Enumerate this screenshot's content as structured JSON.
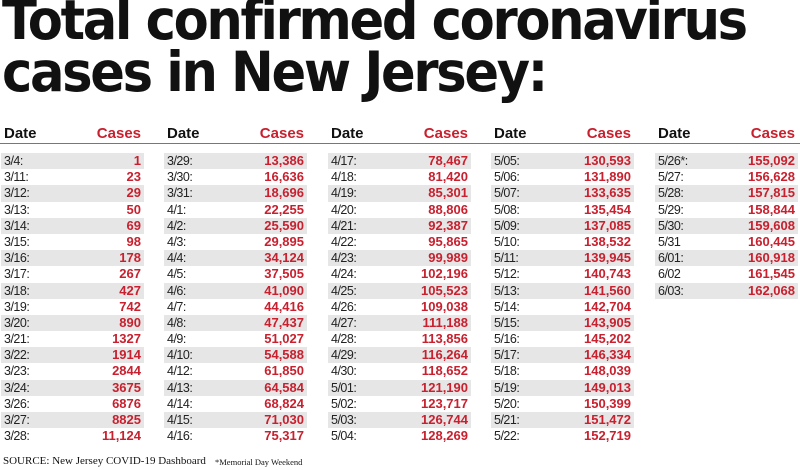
{
  "title": {
    "line1": "Total confirmed coronavirus",
    "line2": "cases in New Jersey:"
  },
  "header": {
    "date": "Date",
    "cases": "Cases"
  },
  "columns": [
    {
      "rows": [
        [
          "3/4:",
          "1"
        ],
        [
          "3/11:",
          "23"
        ],
        [
          "3/12:",
          "29"
        ],
        [
          "3/13:",
          "50"
        ],
        [
          "3/14:",
          "69"
        ],
        [
          "3/15:",
          "98"
        ],
        [
          "3/16:",
          "178"
        ],
        [
          "3/17:",
          "267"
        ],
        [
          "3/18:",
          "427"
        ],
        [
          "3/19:",
          "742"
        ],
        [
          "3/20:",
          "890"
        ],
        [
          "3/21:",
          "1327"
        ],
        [
          "3/22:",
          "1914"
        ],
        [
          "3/23:",
          "2844"
        ],
        [
          "3/24:",
          "3675"
        ],
        [
          "3/26:",
          "6876"
        ],
        [
          "3/27:",
          "8825"
        ],
        [
          "3/28:",
          "11,124"
        ]
      ]
    },
    {
      "rows": [
        [
          "3/29:",
          "13,386"
        ],
        [
          "3/30:",
          "16,636"
        ],
        [
          "3/31:",
          "18,696"
        ],
        [
          "4/1:",
          "22,255"
        ],
        [
          "4/2:",
          "25,590"
        ],
        [
          "4/3:",
          "29,895"
        ],
        [
          "4/4:",
          "34,124"
        ],
        [
          "4/5:",
          "37,505"
        ],
        [
          "4/6:",
          "41,090"
        ],
        [
          "4/7:",
          "44,416"
        ],
        [
          "4/8:",
          "47,437"
        ],
        [
          "4/9:",
          "51,027"
        ],
        [
          "4/10:",
          "54,588"
        ],
        [
          "4/12:",
          "61,850"
        ],
        [
          "4/13:",
          "64,584"
        ],
        [
          "4/14:",
          "68,824"
        ],
        [
          "4/15:",
          "71,030"
        ],
        [
          "4/16:",
          "75,317"
        ]
      ]
    },
    {
      "rows": [
        [
          "4/17:",
          "78,467"
        ],
        [
          "4/18:",
          "81,420"
        ],
        [
          "4/19:",
          "85,301"
        ],
        [
          "4/20:",
          "88,806"
        ],
        [
          "4/21:",
          "92,387"
        ],
        [
          "4/22:",
          "95,865"
        ],
        [
          "4/23:",
          "99,989"
        ],
        [
          "4/24:",
          "102,196"
        ],
        [
          "4/25:",
          "105,523"
        ],
        [
          "4/26:",
          "109,038"
        ],
        [
          "4/27:",
          "111,188"
        ],
        [
          "4/28:",
          "113,856"
        ],
        [
          "4/29:",
          "116,264"
        ],
        [
          "4/30:",
          "118,652"
        ],
        [
          "5/01:",
          "121,190"
        ],
        [
          "5/02:",
          "123,717"
        ],
        [
          "5/03:",
          "126,744"
        ],
        [
          "5/04:",
          "128,269"
        ]
      ]
    },
    {
      "rows": [
        [
          "5/05:",
          "130,593"
        ],
        [
          "5/06:",
          "131,890"
        ],
        [
          "5/07:",
          "133,635"
        ],
        [
          "5/08:",
          "135,454"
        ],
        [
          "5/09:",
          "137,085"
        ],
        [
          "5/10:",
          "138,532"
        ],
        [
          "5/11:",
          "139,945"
        ],
        [
          "5/12:",
          "140,743"
        ],
        [
          "5/13:",
          "141,560"
        ],
        [
          "5/14:",
          "142,704"
        ],
        [
          "5/15:",
          "143,905"
        ],
        [
          "5/16:",
          "145,202"
        ],
        [
          "5/17:",
          "146,334"
        ],
        [
          "5/18:",
          "148,039"
        ],
        [
          "5/19:",
          "149,013"
        ],
        [
          "5/20:",
          "150,399"
        ],
        [
          "5/21:",
          "151,472"
        ],
        [
          "5/22:",
          "152,719"
        ]
      ]
    },
    {
      "rows": [
        [
          "5/26*:",
          "155,092"
        ],
        [
          "5/27:",
          "156,628"
        ],
        [
          "5/28:",
          "157,815"
        ],
        [
          "5/29:",
          "158,844"
        ],
        [
          "5/30:",
          "159,608"
        ],
        [
          "5/31",
          "160,445"
        ],
        [
          "6/01:",
          "160,918"
        ],
        [
          "6/02",
          "161,545"
        ],
        [
          "6/03:",
          "162,068"
        ]
      ]
    }
  ],
  "footer": {
    "source": "SOURCE: New Jersey COVID-19 Dashboard",
    "note": "*Memorial Day Weekend"
  },
  "colors": {
    "accent": "#c8202e",
    "stripe": "#e6e6e6"
  }
}
